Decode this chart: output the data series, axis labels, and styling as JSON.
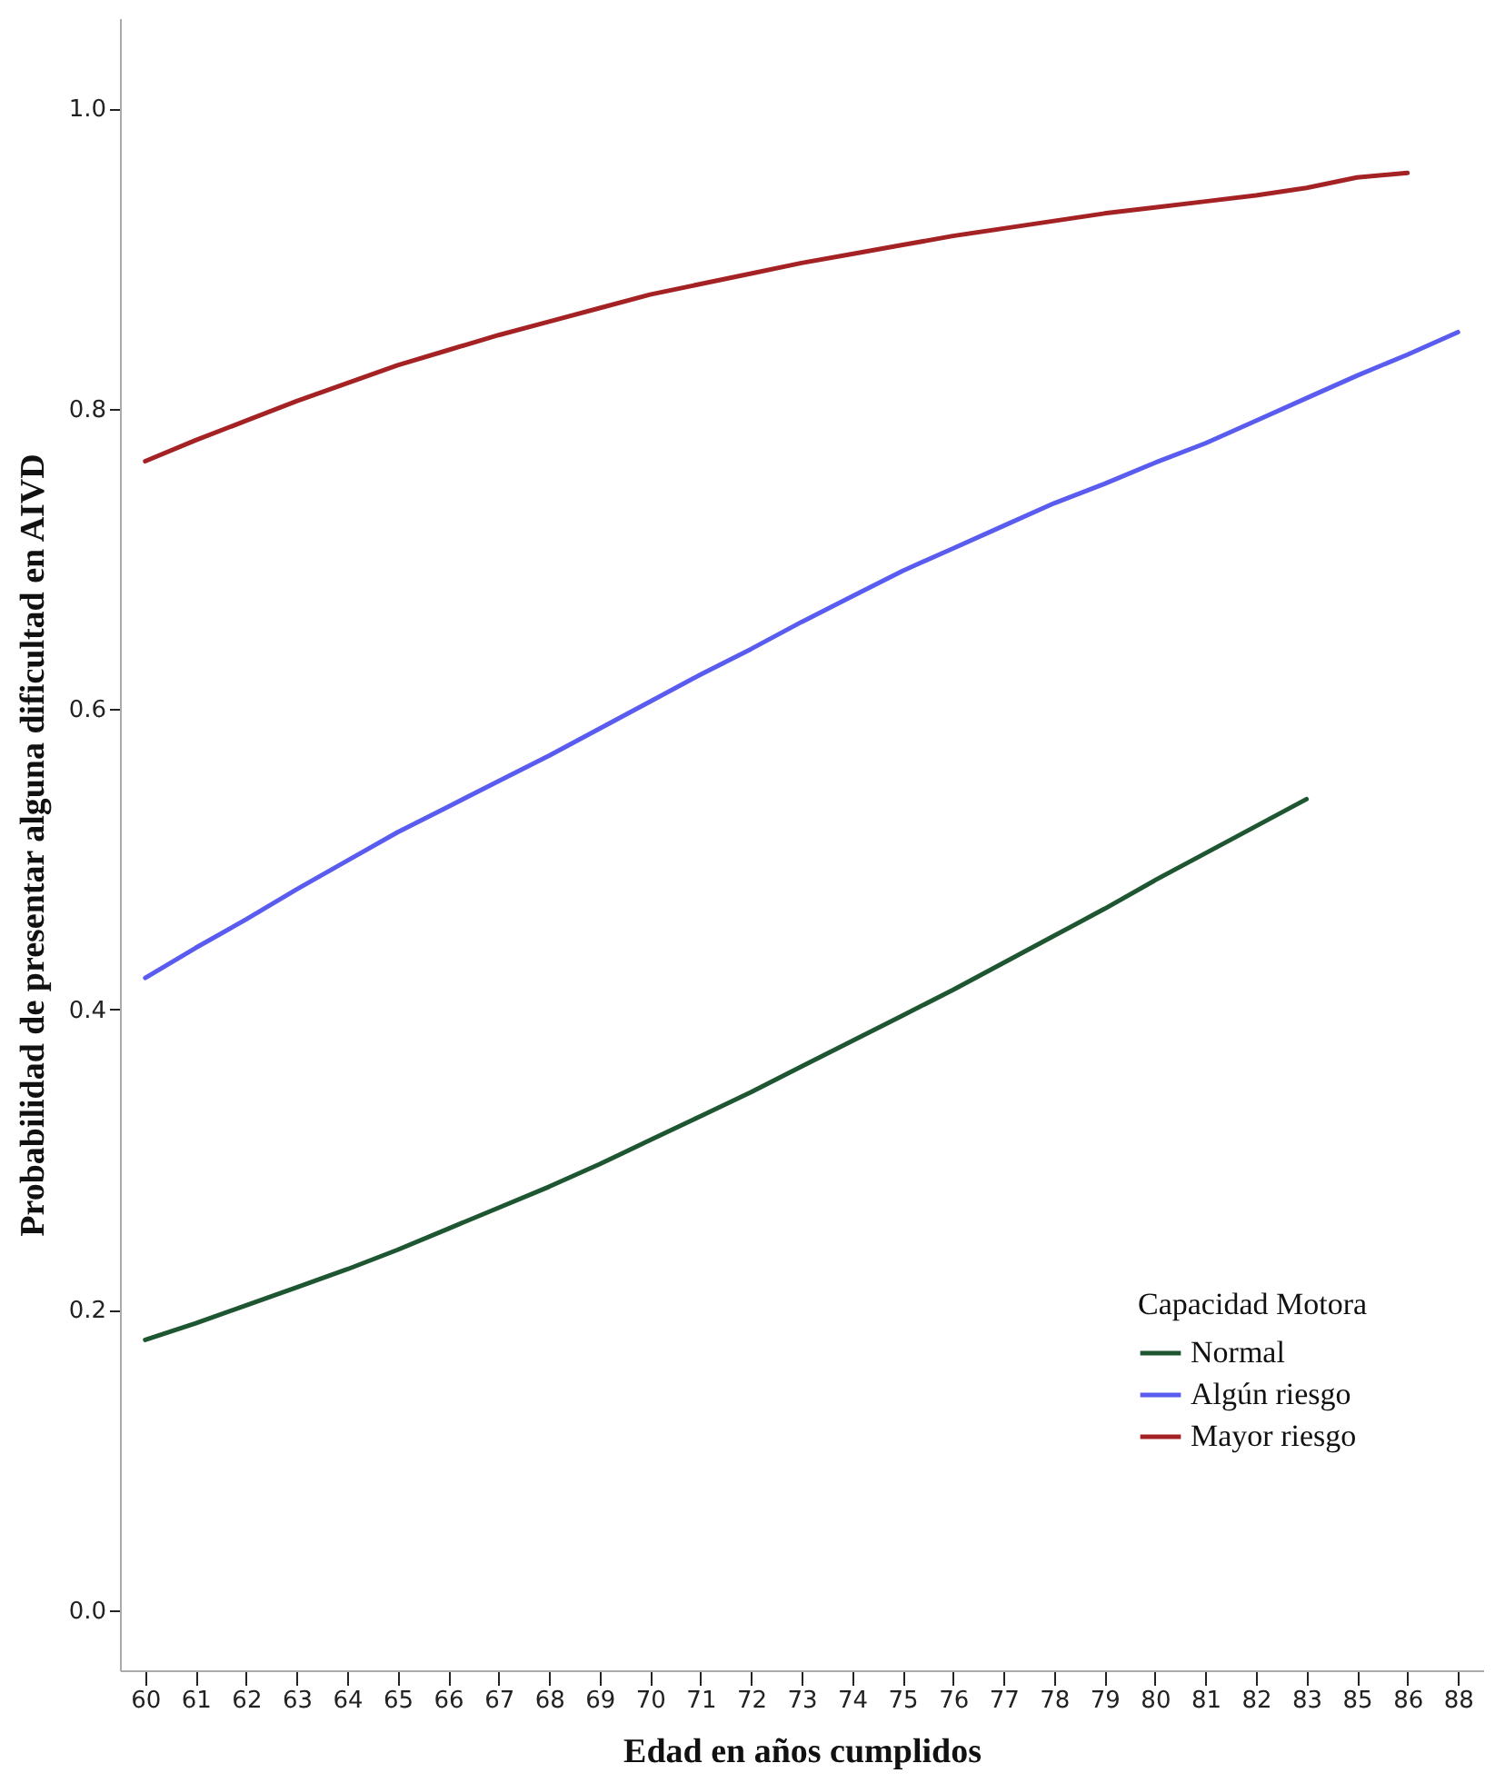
{
  "chart_data": {
    "type": "line",
    "xlabel": "Edad en años cumplidos",
    "ylabel": "Probabilidad de presentar alguna dificultad en AIVD",
    "legend_title": "Capacidad Motora",
    "categories": [
      "60",
      "61",
      "62",
      "63",
      "64",
      "65",
      "66",
      "67",
      "68",
      "69",
      "70",
      "71",
      "72",
      "73",
      "74",
      "75",
      "76",
      "77",
      "78",
      "79",
      "80",
      "81",
      "82",
      "83",
      "85",
      "86",
      "88"
    ],
    "series": [
      {
        "name": "Normal",
        "color": "#1e5631",
        "values": [
          0.18,
          0.191,
          0.203,
          0.215,
          0.227,
          0.24,
          0.254,
          0.268,
          0.282,
          0.297,
          0.313,
          0.329,
          0.345,
          0.362,
          0.379,
          0.396,
          0.413,
          0.431,
          0.449,
          0.467,
          0.486,
          0.504,
          0.522,
          0.54,
          null,
          null,
          null
        ]
      },
      {
        "name": "Algún riesgo",
        "color": "#5a5cf0",
        "values": [
          0.421,
          0.441,
          0.46,
          0.48,
          0.499,
          0.518,
          0.535,
          0.552,
          0.569,
          0.587,
          0.605,
          0.623,
          0.64,
          0.658,
          0.675,
          0.692,
          0.707,
          0.722,
          0.737,
          0.75,
          0.764,
          0.777,
          0.792,
          0.807,
          0.822,
          0.836,
          0.851
        ]
      },
      {
        "name": "Mayor riesgo",
        "color": "#a52224",
        "values": [
          0.765,
          0.779,
          0.792,
          0.805,
          0.817,
          0.829,
          0.839,
          0.849,
          0.858,
          0.867,
          0.876,
          0.883,
          0.89,
          0.897,
          0.903,
          0.909,
          0.915,
          0.92,
          0.925,
          0.93,
          0.934,
          0.938,
          0.942,
          0.947,
          0.954,
          0.957,
          null
        ]
      }
    ],
    "ylim": [
      -0.04,
      1.06
    ],
    "yticks": [
      {
        "value": 0,
        "label": "0.0"
      },
      {
        "value": 0.2,
        "label": "0.2"
      },
      {
        "value": 0.4,
        "label": "0.4"
      },
      {
        "value": 0.6,
        "label": "0.6"
      },
      {
        "value": 0.8,
        "label": "0.8"
      },
      {
        "value": 1,
        "label": "1.0"
      }
    ],
    "grid": false,
    "legend": "bottom right",
    "line_style": "solid",
    "marker": "none"
  }
}
